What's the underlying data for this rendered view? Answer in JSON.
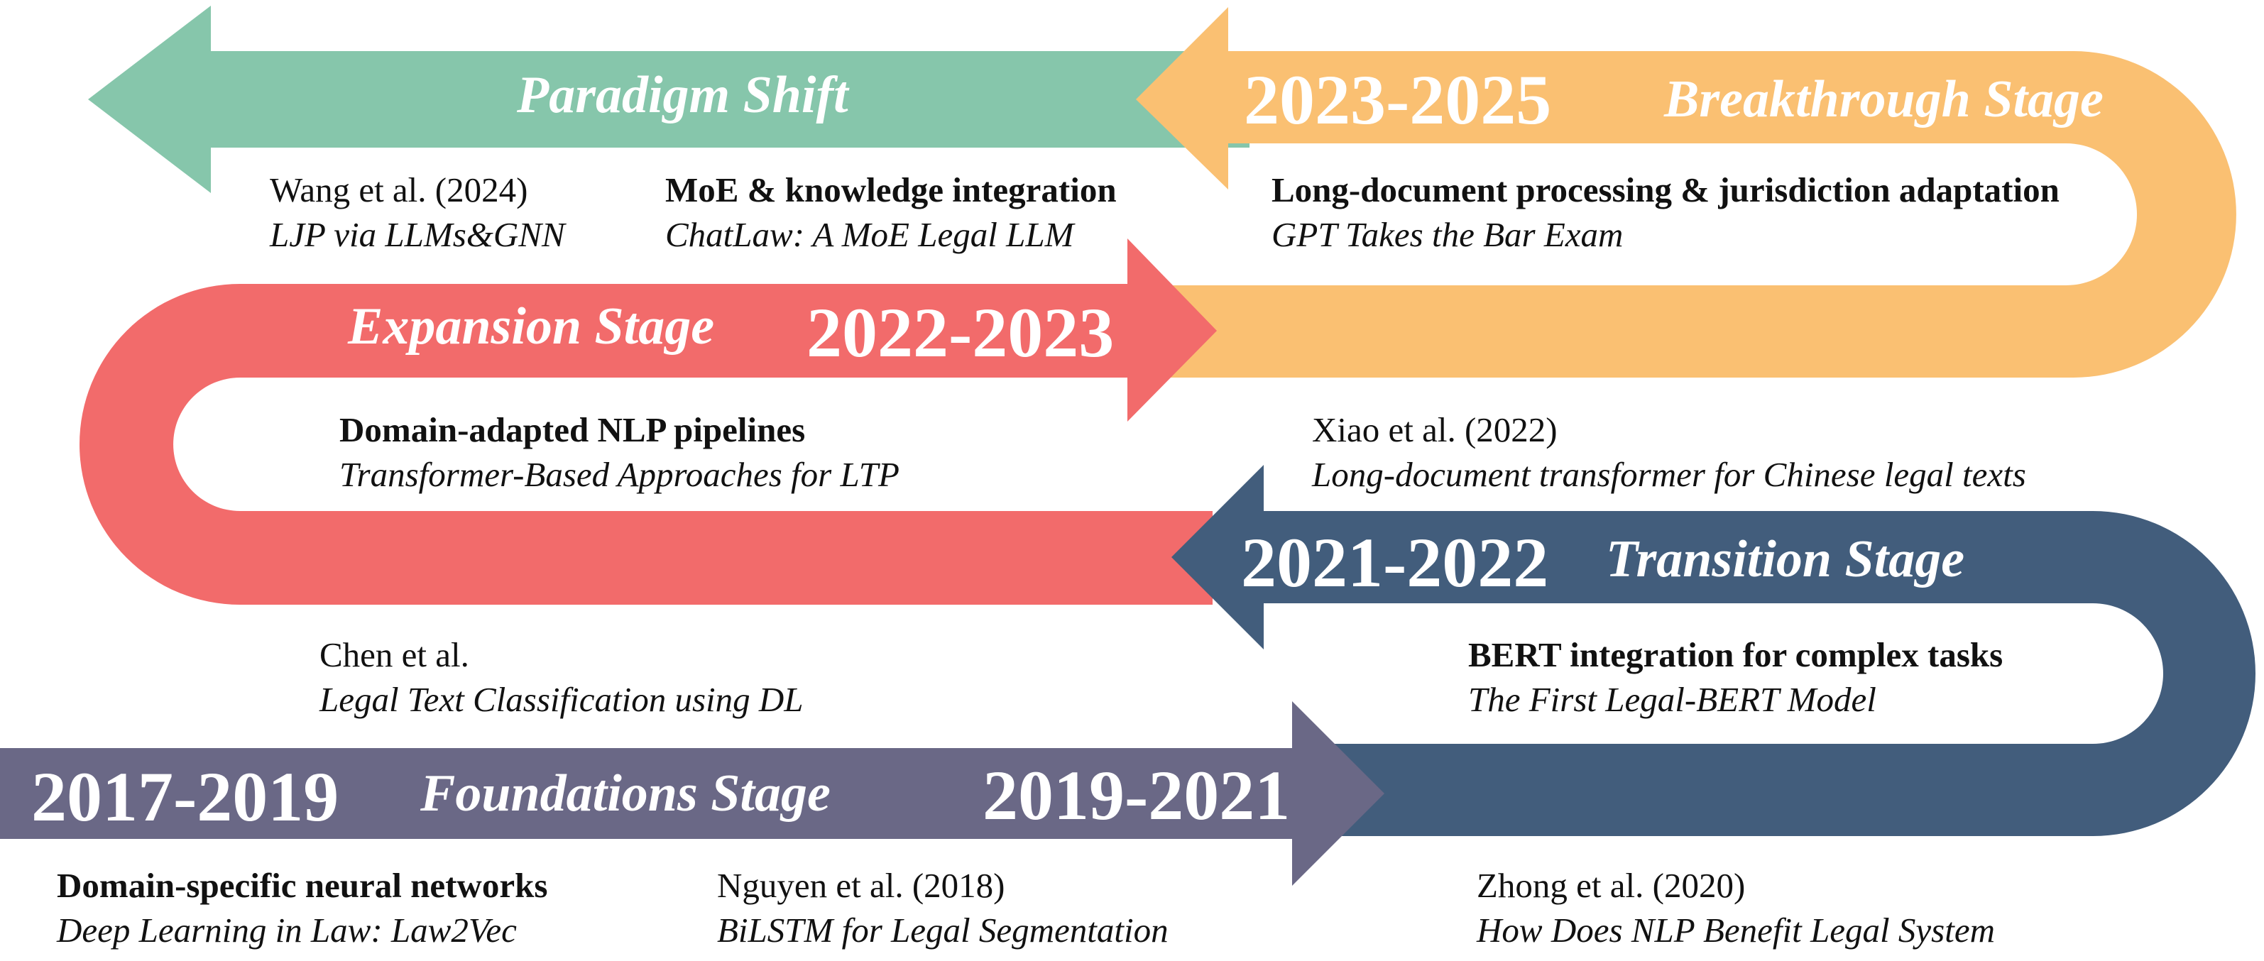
{
  "colors": {
    "paradigm": "#86c6ab",
    "breakthrough": "#fac072",
    "expansion": "#f26b6b",
    "transition": "#425d7c",
    "foundations": "#6a6886"
  },
  "stages": {
    "paradigm": {
      "name": "Paradigm Shift"
    },
    "breakthrough": {
      "name": "Breakthrough Stage",
      "period": "2023-2025"
    },
    "expansion": {
      "name": "Expansion Stage",
      "period": "2022-2023"
    },
    "transition": {
      "name": "Transition Stage",
      "period": "2021-2022"
    },
    "foundations": {
      "name": "Foundations Stage",
      "period_start": "2017-2019",
      "period_end": "2019-2021"
    }
  },
  "refs": {
    "wang": {
      "author": "Wang et al. (2024)",
      "title": "LJP via LLMs&GNN"
    },
    "chatlaw": {
      "topic": "MoE & knowledge integration",
      "title": "ChatLaw: A MoE Legal LLM"
    },
    "gpt": {
      "topic": "Long-document processing & jurisdiction adaptation",
      "title": "GPT Takes the Bar Exam"
    },
    "domain_nlp": {
      "topic": "Domain-adapted NLP pipelines",
      "title": "Transformer-Based Approaches for LTP"
    },
    "xiao": {
      "author": "Xiao et al. (2022)",
      "title": "Long-document transformer for Chinese legal texts"
    },
    "chen": {
      "author": "Chen et al.",
      "title": "Legal Text Classification using DL"
    },
    "bert": {
      "topic": "BERT integration for complex tasks",
      "title": "The First Legal-BERT Model"
    },
    "law2vec": {
      "topic": "Domain-specific neural networks",
      "title": "Deep Learning in Law: Law2Vec"
    },
    "nguyen": {
      "author": "Nguyen et al. (2018)",
      "title": "BiLSTM for Legal Segmentation"
    },
    "zhong": {
      "author": "Zhong et al. (2020)",
      "title": "How Does NLP Benefit Legal System"
    }
  }
}
